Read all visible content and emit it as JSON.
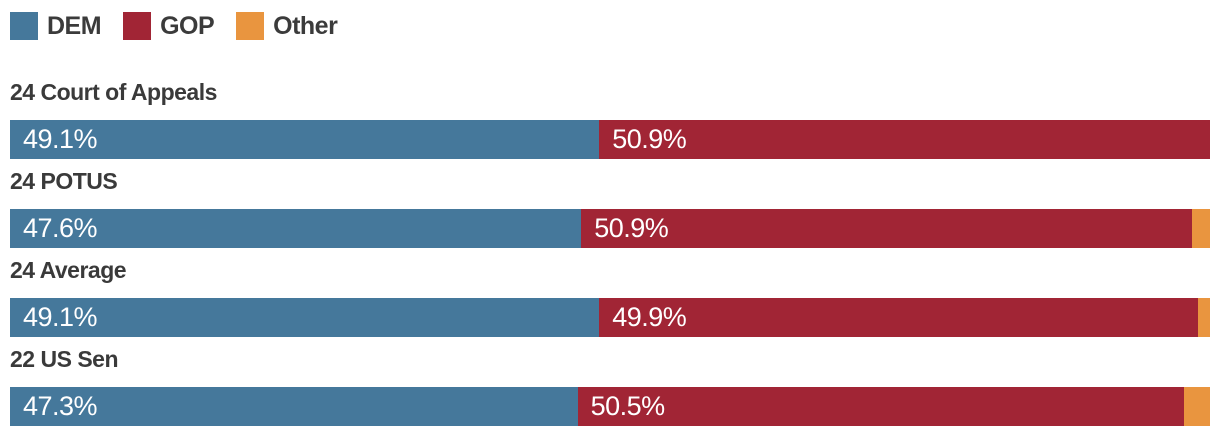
{
  "legend": {
    "items": [
      {
        "label": "DEM",
        "color": "#45789b"
      },
      {
        "label": "GOP",
        "color": "#a12535"
      },
      {
        "label": "Other",
        "color": "#e9953f"
      }
    ]
  },
  "chart_data": {
    "type": "bar",
    "orientation": "horizontal-stacked",
    "title": "",
    "xlabel": "",
    "ylabel": "",
    "xlim": [
      0,
      100
    ],
    "value_suffix": "%",
    "grid": false,
    "legend_position": "top-left",
    "categories": [
      "24 Court of Appeals",
      "24 POTUS",
      "24 Average",
      "22 US Sen"
    ],
    "series": [
      {
        "name": "DEM",
        "color": "#45789b",
        "values": [
          49.1,
          47.6,
          49.1,
          47.3
        ],
        "labels": [
          "49.1%",
          "47.6%",
          "49.1%",
          "47.3%"
        ]
      },
      {
        "name": "GOP",
        "color": "#a12535",
        "values": [
          50.9,
          50.9,
          49.9,
          50.5
        ],
        "labels": [
          "50.9%",
          "50.9%",
          "49.9%",
          "50.5%"
        ]
      },
      {
        "name": "Other",
        "color": "#e9953f",
        "values": [
          0,
          1.5,
          1.0,
          2.2
        ],
        "labels": [
          "",
          "",
          "",
          ""
        ]
      }
    ]
  }
}
